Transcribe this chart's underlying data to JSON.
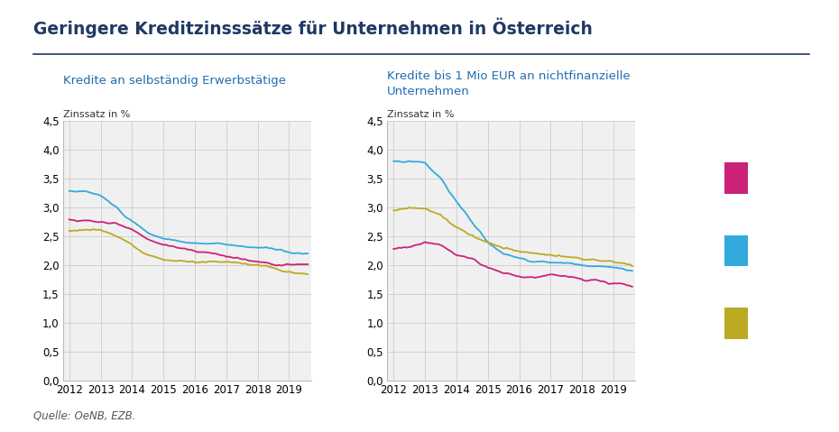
{
  "title": "Geringere Kreditzinsssätze für Unternehmen in Österreich",
  "subtitle1": "Kredite an selbständig Erwerbstätige",
  "subtitle2": "Kredite bis 1 Mio EUR an nichtfinanzielle\nUnternehmen",
  "ylabel": "Zinssatz in %",
  "source": "Quelle: OeNB, EZB.",
  "title_color": "#1F3864",
  "subtitle_color": "#1F6CB0",
  "source_color": "#555555",
  "background_color": "#FFFFFF",
  "grid_color": "#CCCCCC",
  "ax_bg_color": "#F0F0F0",
  "colors": {
    "austria": "#CC2277",
    "euro_area": "#33AADD",
    "germany": "#BBAA22"
  },
  "ylim": [
    0.0,
    4.5
  ],
  "yticks": [
    0.0,
    0.5,
    1.0,
    1.5,
    2.0,
    2.5,
    3.0,
    3.5,
    4.0,
    4.5
  ],
  "xticks": [
    2012,
    2013,
    2014,
    2015,
    2016,
    2017,
    2018,
    2019
  ],
  "xlim": [
    2011.8,
    2019.7
  ]
}
